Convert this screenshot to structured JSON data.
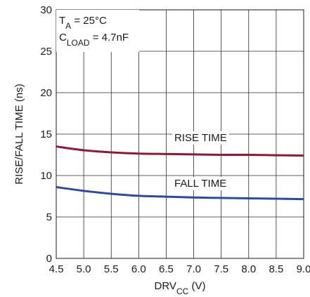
{
  "chart_data": {
    "type": "line",
    "xlabel": {
      "main": "DRV",
      "sub": "CC",
      "unit": " (V)"
    },
    "ylabel": "RISE/FALL TIME (ns)",
    "xlim": [
      4.5,
      9.0
    ],
    "ylim": [
      0,
      30
    ],
    "x_ticks": [
      "4.5",
      "5.0",
      "5.5",
      "6.0",
      "6.5",
      "7.0",
      "7.5",
      "8.0",
      "8.5",
      "9.0"
    ],
    "y_ticks": [
      "0",
      "5",
      "10",
      "15",
      "20",
      "25",
      "30"
    ],
    "grid": true,
    "conditions": [
      {
        "main": "T",
        "sub": "A",
        "rest": " = 25°C"
      },
      {
        "main": "C",
        "sub": "LOAD",
        "rest": " = 4.7nF"
      }
    ],
    "series": [
      {
        "name": "RISE TIME",
        "color": "#8b1a3a",
        "x": [
          4.5,
          5.0,
          5.5,
          6.0,
          6.5,
          7.0,
          7.5,
          8.0,
          8.5,
          9.0
        ],
        "y": [
          13.5,
          13.05,
          12.8,
          12.65,
          12.6,
          12.55,
          12.5,
          12.5,
          12.45,
          12.4
        ]
      },
      {
        "name": "FALL TIME",
        "color": "#2f4a9b",
        "x": [
          4.5,
          5.0,
          5.5,
          6.0,
          6.5,
          7.0,
          7.5,
          8.0,
          8.5,
          9.0
        ],
        "y": [
          8.6,
          8.15,
          7.8,
          7.55,
          7.45,
          7.35,
          7.3,
          7.25,
          7.2,
          7.15
        ]
      }
    ]
  }
}
